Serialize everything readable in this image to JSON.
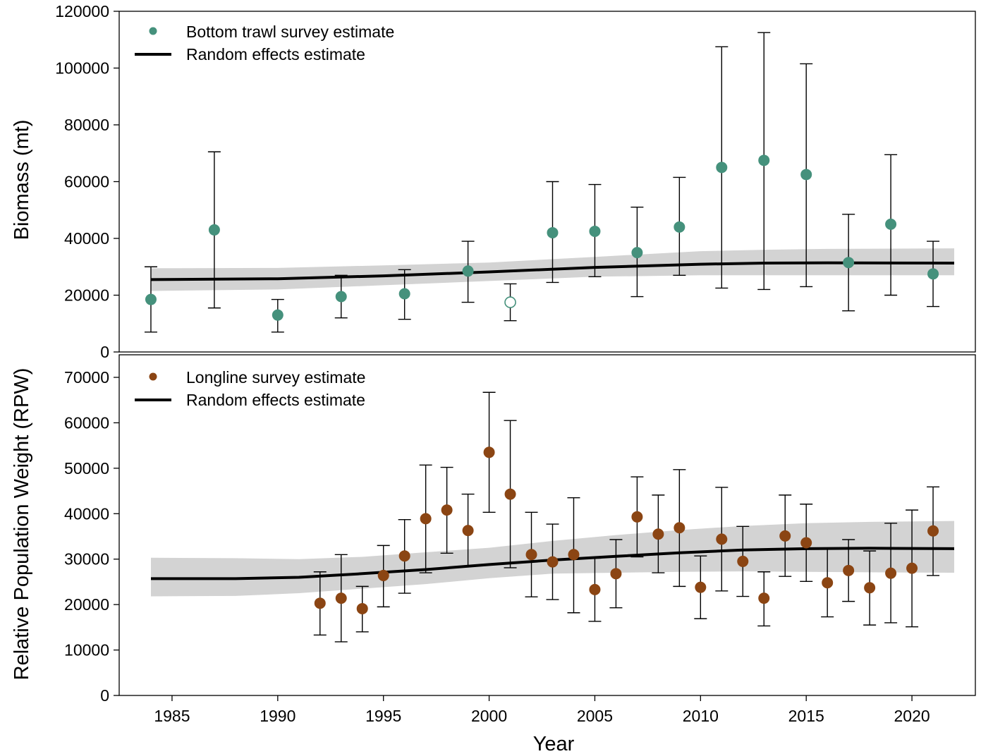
{
  "chart_data": [
    {
      "type": "scatter",
      "ylabel": "Biomass (mt)",
      "ylim": [
        0,
        120000
      ],
      "yticks": [
        0,
        20000,
        40000,
        60000,
        80000,
        100000,
        120000
      ],
      "legend_position": "top-left",
      "point_color": "#45917C",
      "series": [
        {
          "name": "Bottom trawl survey estimate",
          "points": [
            {
              "x": 1984,
              "y": 18500,
              "lo": 7000,
              "hi": 30000
            },
            {
              "x": 1987,
              "y": 43000,
              "lo": 15500,
              "hi": 70500
            },
            {
              "x": 1990,
              "y": 13000,
              "lo": 7000,
              "hi": 18500
            },
            {
              "x": 1993,
              "y": 19500,
              "lo": 12000,
              "hi": 27000
            },
            {
              "x": 1996,
              "y": 20500,
              "lo": 11500,
              "hi": 29000
            },
            {
              "x": 1999,
              "y": 28500,
              "lo": 17500,
              "hi": 39000
            },
            {
              "x": 2001,
              "y": 17500,
              "lo": 11000,
              "hi": 24000,
              "open": true
            },
            {
              "x": 2003,
              "y": 42000,
              "lo": 24500,
              "hi": 60000
            },
            {
              "x": 2005,
              "y": 42500,
              "lo": 26500,
              "hi": 59000
            },
            {
              "x": 2007,
              "y": 35000,
              "lo": 19500,
              "hi": 51000
            },
            {
              "x": 2009,
              "y": 44000,
              "lo": 27000,
              "hi": 61500
            },
            {
              "x": 2011,
              "y": 65000,
              "lo": 22500,
              "hi": 107500
            },
            {
              "x": 2013,
              "y": 67500,
              "lo": 22000,
              "hi": 112500
            },
            {
              "x": 2015,
              "y": 62500,
              "lo": 23000,
              "hi": 101500
            },
            {
              "x": 2017,
              "y": 31500,
              "lo": 14500,
              "hi": 48500
            },
            {
              "x": 2019,
              "y": 45000,
              "lo": 20000,
              "hi": 69500
            },
            {
              "x": 2021,
              "y": 27500,
              "lo": 16000,
              "hi": 39000
            }
          ]
        },
        {
          "name": "Random effects estimate",
          "line": [
            {
              "x": 1984,
              "y": 25500,
              "lo": 21500,
              "hi": 29500
            },
            {
              "x": 1990,
              "y": 25800,
              "lo": 22000,
              "hi": 29600
            },
            {
              "x": 1995,
              "y": 26800,
              "lo": 23500,
              "hi": 30500
            },
            {
              "x": 2000,
              "y": 28200,
              "lo": 25000,
              "hi": 31500
            },
            {
              "x": 2005,
              "y": 29800,
              "lo": 26500,
              "hi": 33500
            },
            {
              "x": 2010,
              "y": 30900,
              "lo": 27000,
              "hi": 35500
            },
            {
              "x": 2013,
              "y": 31300,
              "lo": 27000,
              "hi": 36000
            },
            {
              "x": 2016,
              "y": 31400,
              "lo": 27000,
              "hi": 36300
            },
            {
              "x": 2022,
              "y": 31300,
              "lo": 27000,
              "hi": 36500
            }
          ]
        }
      ]
    },
    {
      "type": "scatter",
      "ylabel": "Relative Population Weight (RPW)",
      "xlabel": "Year",
      "ylim": [
        0,
        75000
      ],
      "yticks": [
        0,
        10000,
        20000,
        30000,
        40000,
        50000,
        60000,
        70000
      ],
      "xlim": [
        1982.5,
        2023
      ],
      "xticks": [
        1985,
        1990,
        1995,
        2000,
        2005,
        2010,
        2015,
        2020
      ],
      "legend_position": "top-left",
      "point_color": "#8B4513",
      "series": [
        {
          "name": "Longline survey estimate",
          "points": [
            {
              "x": 1992,
              "y": 20300,
              "lo": 13300,
              "hi": 27200
            },
            {
              "x": 1993,
              "y": 21400,
              "lo": 11800,
              "hi": 31000
            },
            {
              "x": 1994,
              "y": 19100,
              "lo": 14000,
              "hi": 24000
            },
            {
              "x": 1995,
              "y": 26400,
              "lo": 19500,
              "hi": 33000
            },
            {
              "x": 1996,
              "y": 30700,
              "lo": 22500,
              "hi": 38700
            },
            {
              "x": 1997,
              "y": 38900,
              "lo": 27000,
              "hi": 50700
            },
            {
              "x": 1998,
              "y": 40800,
              "lo": 31300,
              "hi": 50200
            },
            {
              "x": 1999,
              "y": 36300,
              "lo": 28400,
              "hi": 44300
            },
            {
              "x": 2000,
              "y": 53500,
              "lo": 40300,
              "hi": 66700
            },
            {
              "x": 2001,
              "y": 44300,
              "lo": 28100,
              "hi": 60500
            },
            {
              "x": 2002,
              "y": 31000,
              "lo": 21700,
              "hi": 40300
            },
            {
              "x": 2003,
              "y": 29400,
              "lo": 21100,
              "hi": 37700
            },
            {
              "x": 2004,
              "y": 31000,
              "lo": 18200,
              "hi": 43500
            },
            {
              "x": 2005,
              "y": 23300,
              "lo": 16300,
              "hi": 30200
            },
            {
              "x": 2006,
              "y": 26800,
              "lo": 19300,
              "hi": 34300
            },
            {
              "x": 2007,
              "y": 39300,
              "lo": 30500,
              "hi": 48100
            },
            {
              "x": 2008,
              "y": 35500,
              "lo": 27000,
              "hi": 44100
            },
            {
              "x": 2009,
              "y": 36900,
              "lo": 24000,
              "hi": 49700
            },
            {
              "x": 2010,
              "y": 23800,
              "lo": 16900,
              "hi": 30700
            },
            {
              "x": 2011,
              "y": 34400,
              "lo": 23000,
              "hi": 45800
            },
            {
              "x": 2012,
              "y": 29500,
              "lo": 21800,
              "hi": 37200
            },
            {
              "x": 2013,
              "y": 21400,
              "lo": 15300,
              "hi": 27200
            },
            {
              "x": 2014,
              "y": 35100,
              "lo": 26200,
              "hi": 44100
            },
            {
              "x": 2015,
              "y": 33600,
              "lo": 25100,
              "hi": 42100
            },
            {
              "x": 2016,
              "y": 24800,
              "lo": 17300,
              "hi": 32300
            },
            {
              "x": 2017,
              "y": 27500,
              "lo": 20700,
              "hi": 34300
            },
            {
              "x": 2018,
              "y": 23700,
              "lo": 15500,
              "hi": 31800
            },
            {
              "x": 2019,
              "y": 26900,
              "lo": 16000,
              "hi": 37900
            },
            {
              "x": 2020,
              "y": 28000,
              "lo": 15100,
              "hi": 40800
            },
            {
              "x": 2021,
              "y": 36200,
              "lo": 26400,
              "hi": 45900
            }
          ]
        },
        {
          "name": "Random effects estimate",
          "line": [
            {
              "x": 1984,
              "y": 25700,
              "lo": 21800,
              "hi": 30300
            },
            {
              "x": 1988,
              "y": 25700,
              "lo": 21900,
              "hi": 30200
            },
            {
              "x": 1991,
              "y": 26000,
              "lo": 22500,
              "hi": 30000
            },
            {
              "x": 1994,
              "y": 26800,
              "lo": 23500,
              "hi": 30500
            },
            {
              "x": 1997,
              "y": 27700,
              "lo": 24500,
              "hi": 31500
            },
            {
              "x": 2000,
              "y": 28800,
              "lo": 25800,
              "hi": 32500
            },
            {
              "x": 2003,
              "y": 29800,
              "lo": 26800,
              "hi": 34000
            },
            {
              "x": 2006,
              "y": 30600,
              "lo": 27000,
              "hi": 35300
            },
            {
              "x": 2009,
              "y": 31400,
              "lo": 27200,
              "hi": 36400
            },
            {
              "x": 2012,
              "y": 32000,
              "lo": 27300,
              "hi": 37300
            },
            {
              "x": 2015,
              "y": 32300,
              "lo": 27200,
              "hi": 37900
            },
            {
              "x": 2018,
              "y": 32400,
              "lo": 27100,
              "hi": 38200
            },
            {
              "x": 2022,
              "y": 32300,
              "lo": 27000,
              "hi": 38400
            }
          ]
        }
      ]
    }
  ]
}
